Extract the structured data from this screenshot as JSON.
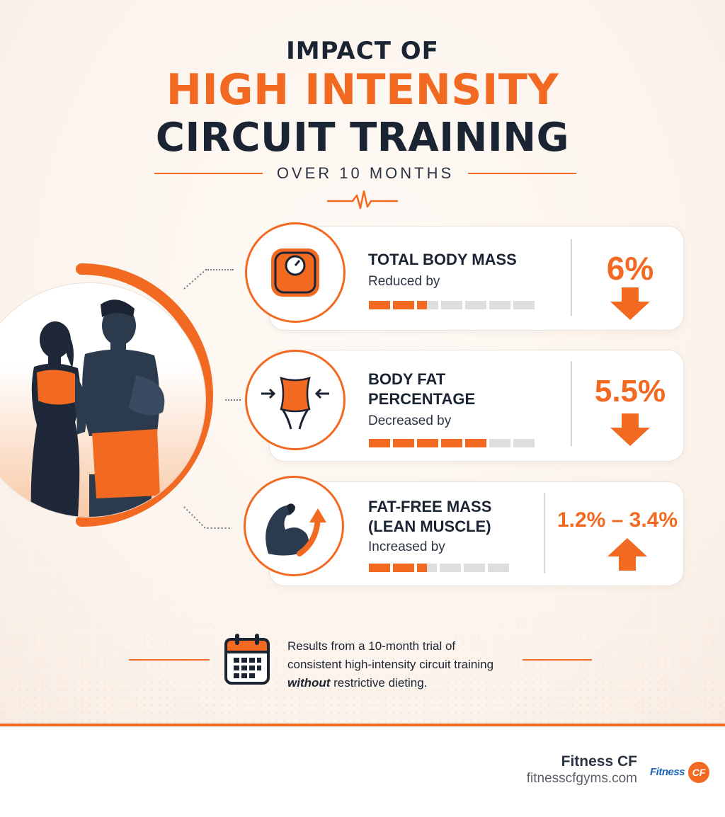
{
  "header": {
    "line1": "IMPACT OF",
    "line2": "HIGH INTENSITY",
    "line3": "CIRCUIT TRAINING",
    "subtitle": "OVER 10 MONTHS"
  },
  "metrics": [
    {
      "title": "TOTAL BODY MASS",
      "subtitle": "Reduced by",
      "value": "6%",
      "direction": "down",
      "icon": "scale-icon",
      "bar_filled": 3,
      "bar_total": 7
    },
    {
      "title_line1": "BODY FAT",
      "title_line2": "PERCENTAGE",
      "subtitle": "Decreased by",
      "value": "5.5%",
      "direction": "down",
      "icon": "waist-icon",
      "bar_filled": 5,
      "bar_total": 7
    },
    {
      "title_line1": "FAT-FREE MASS",
      "title_line2": "(LEAN MUSCLE)",
      "subtitle": "Increased by",
      "value": "1.2% – 3.4%",
      "direction": "up",
      "icon": "flexed-arm-icon",
      "bar_filled": 3,
      "bar_total": 6
    }
  ],
  "footnote": {
    "line1": "Results from a 10-month trial of",
    "line2": "consistent high-intensity circuit training",
    "emphasis": "without",
    "line3_rest": " restrictive dieting."
  },
  "brand": {
    "name": "Fitness CF",
    "url": "fitnesscfgyms.com",
    "logo_text": "Fitness",
    "logo_badge": "CF"
  },
  "colors": {
    "accent": "#f26a21",
    "navy": "#1b2433",
    "track": "#dedede"
  }
}
